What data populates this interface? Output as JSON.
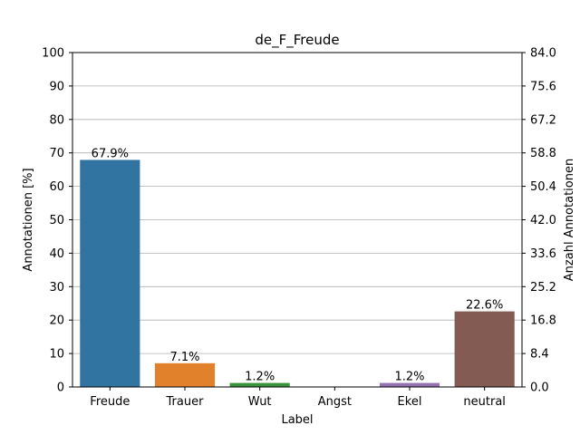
{
  "chart_data": {
    "type": "bar",
    "title": "de_F_Freude",
    "xlabel": "Label",
    "ylabel": "Annotationen [%]",
    "ylabel_right": "Anzahl Annotationen",
    "categories": [
      "Freude",
      "Trauer",
      "Wut",
      "Angst",
      "Ekel",
      "neutral"
    ],
    "values": [
      67.9,
      7.1,
      1.2,
      0,
      1.2,
      22.6
    ],
    "value_labels": [
      "67.9%",
      "7.1%",
      "1.2%",
      "",
      "1.2%",
      "22.6%"
    ],
    "colors": [
      "#3274a1",
      "#e1812c",
      "#3a923a",
      "#c03d3e",
      "#9372b2",
      "#845b53"
    ],
    "ylim": [
      0,
      100
    ],
    "yticks": [
      "0",
      "10",
      "20",
      "30",
      "40",
      "50",
      "60",
      "70",
      "80",
      "90",
      "100"
    ],
    "ylim_right": [
      0,
      84
    ],
    "yticks_right": [
      "0.0",
      "8.4",
      "16.8",
      "25.2",
      "33.6",
      "42.0",
      "50.4",
      "58.8",
      "67.2",
      "75.6",
      "84.0"
    ],
    "grid": true,
    "grid_axis": "y"
  }
}
